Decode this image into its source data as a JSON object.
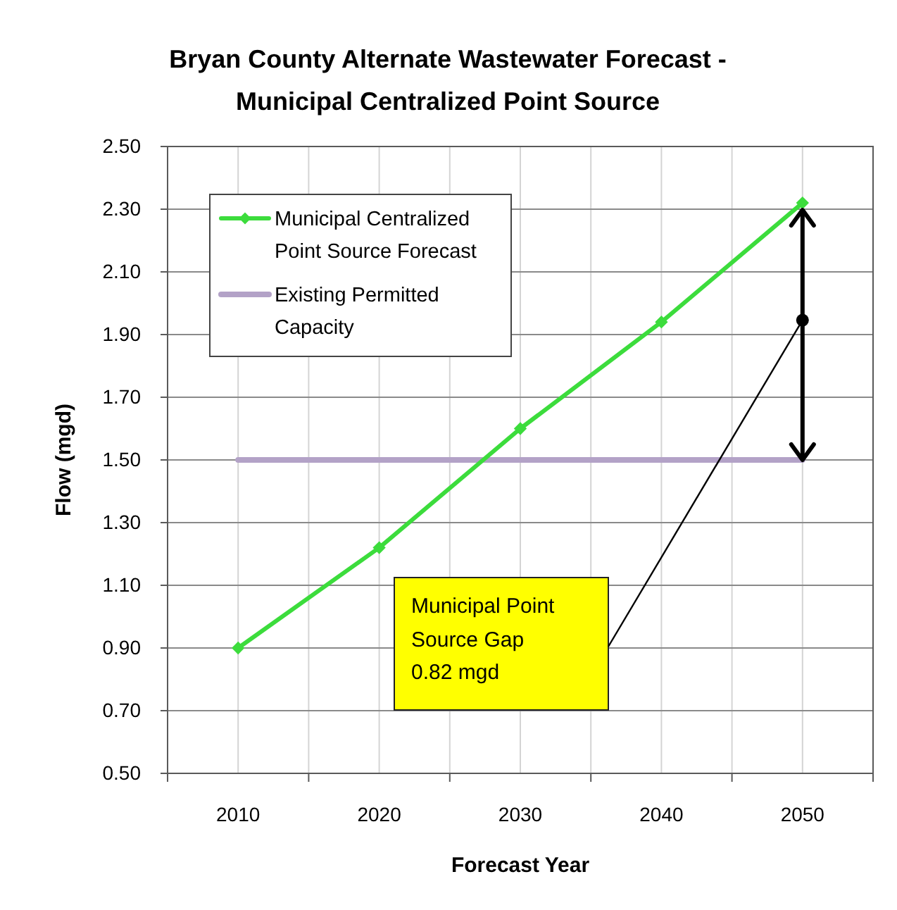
{
  "chart_data": {
    "type": "line",
    "title": "Bryan County Alternate Wastewater Forecast -\nMunicipal Centralized Point Source",
    "xlabel": "Forecast Year",
    "ylabel": "Flow (mgd)",
    "categories": [
      "2010",
      "2020",
      "2030",
      "2040",
      "2050"
    ],
    "series": [
      {
        "name": "Municipal Centralized Point Source Forecast",
        "color": "#3cdc3c",
        "marker": "diamond",
        "values": [
          0.9,
          1.22,
          1.6,
          1.94,
          2.32
        ]
      },
      {
        "name": "Existing Permitted Capacity",
        "color": "#b3a2c7",
        "marker": "none",
        "values": [
          1.5,
          1.5,
          1.5,
          1.5,
          1.5
        ]
      }
    ],
    "ylim": [
      0.5,
      2.5
    ],
    "yticks": [
      {
        "value": 0.5,
        "label": "0.50"
      },
      {
        "value": 0.7,
        "label": "0.70"
      },
      {
        "value": 0.9,
        "label": "0.90"
      },
      {
        "value": 1.1,
        "label": "1.10"
      },
      {
        "value": 1.3,
        "label": "1.30"
      },
      {
        "value": 1.5,
        "label": "1.50"
      },
      {
        "value": 1.7,
        "label": "1.70"
      },
      {
        "value": 1.9,
        "label": "1.90"
      },
      {
        "value": 2.1,
        "label": "2.10"
      },
      {
        "value": 2.3,
        "label": "2.30"
      },
      {
        "value": 2.5,
        "label": "2.50"
      }
    ],
    "grid": true,
    "legend": "top left",
    "annotations": [
      "Municipal Point\nSource Gap\n0.82 mgd"
    ]
  }
}
